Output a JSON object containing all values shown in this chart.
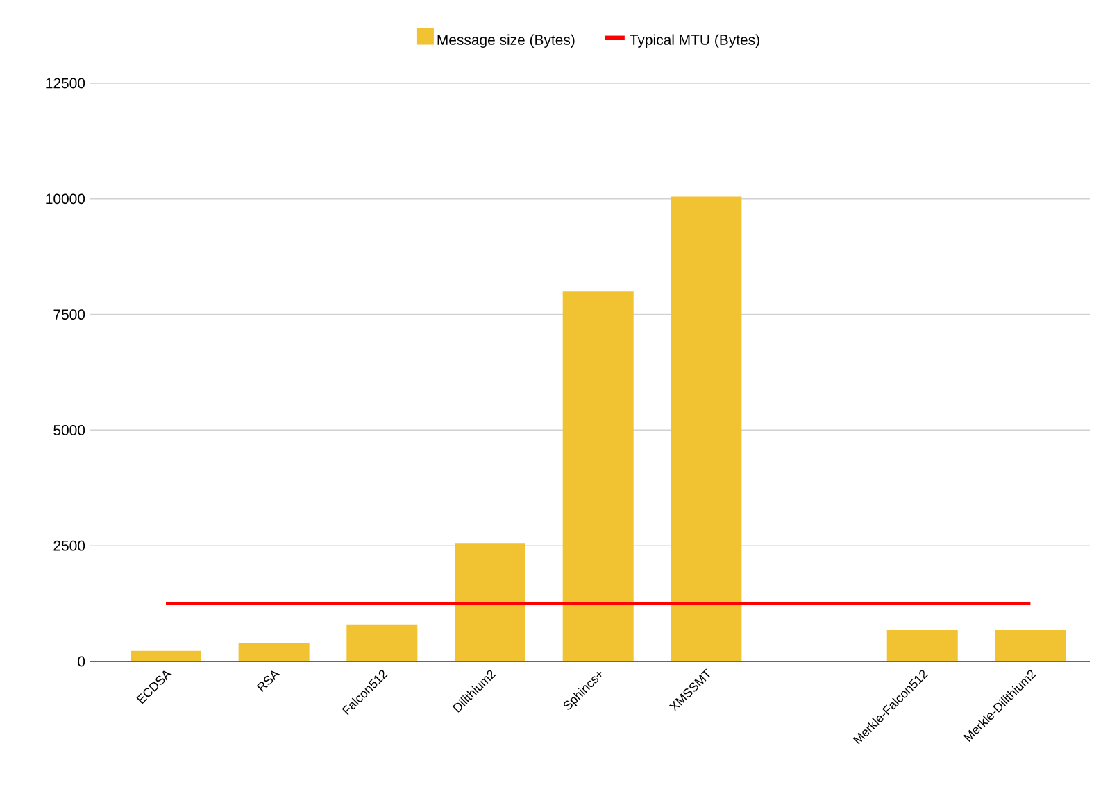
{
  "chart_data": {
    "type": "bar",
    "categories": [
      "ECDSA",
      "RSA",
      "Falcon512",
      "Dilithium2",
      "Sphincs+",
      "XMSSMT",
      null,
      "Merkle-Falcon512",
      "Merkle-Dilithium2"
    ],
    "series": [
      {
        "name": "Message size (Bytes)",
        "color": "#f1c232",
        "values": [
          230,
          390,
          800,
          2560,
          8000,
          10050,
          null,
          680,
          680
        ]
      },
      {
        "name": "Typical MTU (Bytes)",
        "type": "line",
        "color": "#ff0000",
        "values": [
          1250,
          1250,
          1250,
          1250,
          1250,
          1250,
          1250,
          1250,
          1250
        ]
      }
    ],
    "ylim": [
      0,
      12500
    ],
    "yticks": [
      0,
      2500,
      5000,
      7500,
      10000,
      12500
    ],
    "grid": "y",
    "legend": "top"
  }
}
